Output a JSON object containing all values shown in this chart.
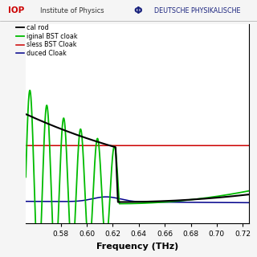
{
  "xlabel": "Frequency (THz)",
  "xlim": [
    0.553,
    0.725
  ],
  "ylim": [
    -0.5,
    5.5
  ],
  "red_line_y": 1.85,
  "background_color": "#ffffff",
  "green_color": "#00bb00",
  "black_color": "#000000",
  "red_color": "#cc0000",
  "blue_color": "#00008b",
  "header_line_color": "#aaaaaa",
  "legend_labels": [
    "cal rod",
    "iginal BST cloak",
    "sless BST Cloak",
    "duced Cloak"
  ],
  "legend_colors": [
    "#000000",
    "#00bb00",
    "#cc0000",
    "#00008b"
  ]
}
